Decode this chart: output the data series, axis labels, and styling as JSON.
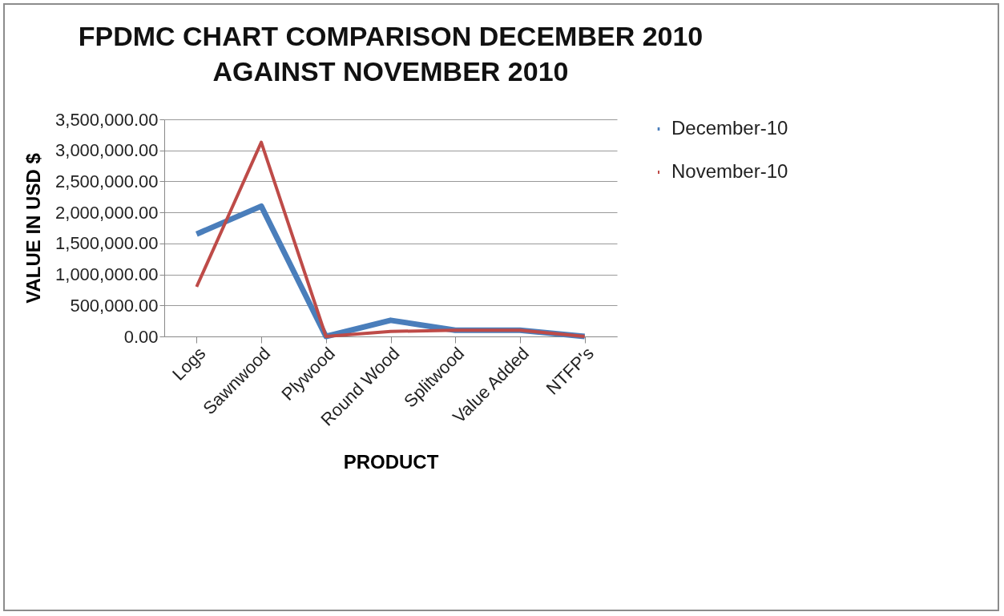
{
  "chart_data": {
    "type": "line",
    "title": [
      "FPDMC CHART COMPARISON DECEMBER 2010",
      "AGAINST NOVEMBER 2010"
    ],
    "xlabel": "PRODUCT",
    "ylabel": "VALUE IN USD $",
    "categories": [
      "Logs",
      "Sawnwood",
      "Plywood",
      "Round Wood",
      "Splitwood",
      "Value Added",
      "NTFP's"
    ],
    "series": [
      {
        "name": "December-10",
        "color": "#4a7ebb",
        "values": [
          1650000,
          2100000,
          0,
          260000,
          100000,
          100000,
          0
        ]
      },
      {
        "name": "November-10",
        "color": "#be4b48",
        "values": [
          800000,
          3130000,
          0,
          80000,
          100000,
          100000,
          0
        ]
      }
    ],
    "ylim": [
      0,
      3500000
    ],
    "yticks": [
      {
        "value": 0,
        "label": "0.00"
      },
      {
        "value": 500000,
        "label": "500,000.00"
      },
      {
        "value": 1000000,
        "label": "1,000,000.00"
      },
      {
        "value": 1500000,
        "label": "1,500,000.00"
      },
      {
        "value": 2000000,
        "label": "2,000,000.00"
      },
      {
        "value": 2500000,
        "label": "2,500,000.00"
      },
      {
        "value": 3000000,
        "label": "3,000,000.00"
      },
      {
        "value": 3500000,
        "label": "3,500,000.00"
      }
    ],
    "grid": "y",
    "legend": "right",
    "marker": "none",
    "line_style": "solid"
  }
}
